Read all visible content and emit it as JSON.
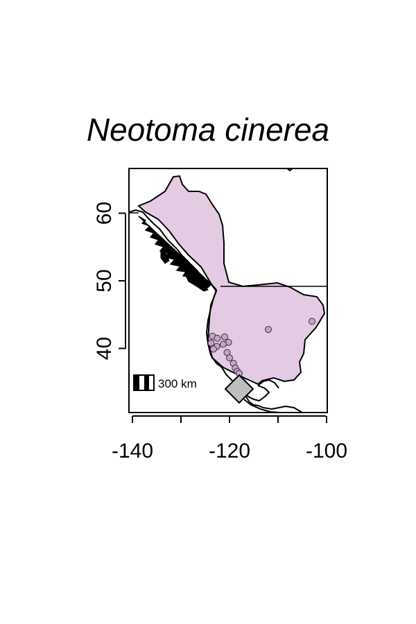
{
  "map": {
    "title": "Neotoma cinerea",
    "scale_bar_label": "300 km",
    "x_ticks": [
      {
        "value": -140,
        "label": "-140"
      },
      {
        "value": -130,
        "label": ""
      },
      {
        "value": -120,
        "label": "-120"
      },
      {
        "value": -110,
        "label": ""
      },
      {
        "value": -100,
        "label": "-100"
      }
    ],
    "y_ticks": [
      {
        "value": 40,
        "label": "40"
      },
      {
        "value": 50,
        "label": "50"
      },
      {
        "value": 60,
        "label": "60"
      }
    ],
    "xlim": [
      -141,
      -100
    ],
    "ylim": [
      30,
      66
    ],
    "colors": {
      "range_fill": "#e4cbe4",
      "point_fill": "#c8a2c8",
      "diamond_fill": "#bdbdbd",
      "outline": "#000000"
    },
    "occurrence_points": [
      {
        "lon": -123.5,
        "lat": 41.8
      },
      {
        "lon": -122.5,
        "lat": 41.5
      },
      {
        "lon": -121.0,
        "lat": 41.7
      },
      {
        "lon": -120.2,
        "lat": 40.9
      },
      {
        "lon": -121.3,
        "lat": 40.6
      },
      {
        "lon": -122.6,
        "lat": 40.3
      },
      {
        "lon": -123.8,
        "lat": 40.8
      },
      {
        "lon": -123.3,
        "lat": 39.9
      },
      {
        "lon": -120.5,
        "lat": 39.4
      },
      {
        "lon": -120.0,
        "lat": 38.6
      },
      {
        "lon": -119.2,
        "lat": 37.8
      },
      {
        "lon": -118.8,
        "lat": 37.1
      },
      {
        "lon": -118.4,
        "lat": 36.6
      },
      {
        "lon": -118.0,
        "lat": 36.3
      },
      {
        "lon": -112.0,
        "lat": 42.8
      },
      {
        "lon": -103.0,
        "lat": 44.0
      }
    ],
    "diamond_marker": {
      "lon": -118.0,
      "lat": 34.0
    }
  }
}
